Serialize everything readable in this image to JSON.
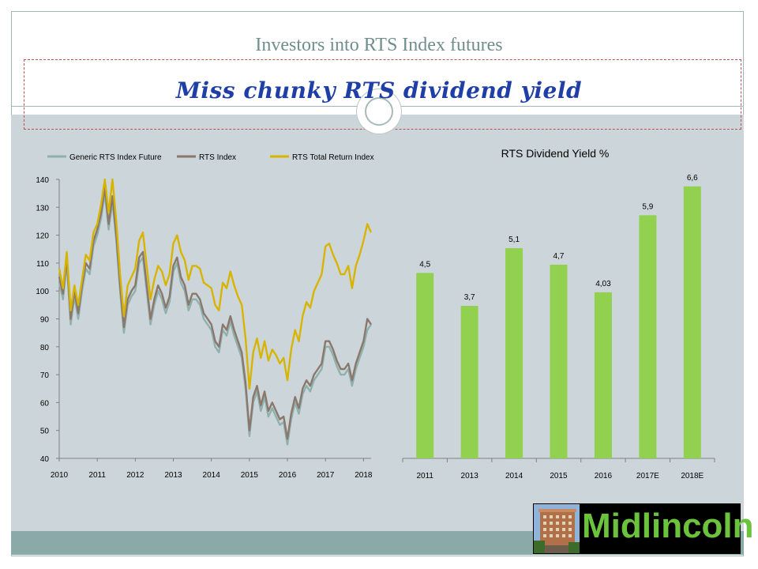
{
  "slide": {
    "title": "Investors into RTS Index futures",
    "subtitle": "Miss chunky RTS dividend yield"
  },
  "logo": {
    "text": "Midlincoln"
  },
  "colors": {
    "future": "#8fb0ad",
    "index": "#8b786c",
    "total_return": "#d8b400",
    "bar": "#92d050",
    "background": "#ccd6da",
    "footer": "#8aa9a8",
    "accent_title": "#6f8e8c",
    "subtitle": "#1f3fa6"
  },
  "chart_data": [
    {
      "type": "line",
      "title": "",
      "xlabel": "",
      "ylabel": "",
      "legend_position": "top",
      "ylim": [
        40,
        140
      ],
      "xlim": [
        2010,
        2018.2
      ],
      "xticks": [
        "2010",
        "2011",
        "2012",
        "2013",
        "2014",
        "2015",
        "2016",
        "2017",
        "2018"
      ],
      "yticks": [
        40,
        50,
        60,
        70,
        80,
        90,
        100,
        110,
        120,
        130,
        140
      ],
      "series": [
        {
          "name": "Generic RTS Index Future",
          "x": [
            2010.0,
            2010.1,
            2010.2,
            2010.3,
            2010.4,
            2010.5,
            2010.6,
            2010.7,
            2010.8,
            2010.9,
            2011.0,
            2011.1,
            2011.2,
            2011.3,
            2011.4,
            2011.5,
            2011.6,
            2011.7,
            2011.8,
            2011.9,
            2012.0,
            2012.1,
            2012.2,
            2012.3,
            2012.4,
            2012.5,
            2012.6,
            2012.7,
            2012.8,
            2012.9,
            2013.0,
            2013.1,
            2013.2,
            2013.3,
            2013.4,
            2013.5,
            2013.6,
            2013.7,
            2013.8,
            2013.9,
            2014.0,
            2014.1,
            2014.2,
            2014.3,
            2014.4,
            2014.5,
            2014.6,
            2014.7,
            2014.8,
            2014.9,
            2015.0,
            2015.1,
            2015.2,
            2015.3,
            2015.4,
            2015.5,
            2015.6,
            2015.7,
            2015.8,
            2015.9,
            2016.0,
            2016.1,
            2016.2,
            2016.3,
            2016.4,
            2016.5,
            2016.6,
            2016.7,
            2016.8,
            2016.9,
            2017.0,
            2017.1,
            2017.2,
            2017.3,
            2017.4,
            2017.5,
            2017.6,
            2017.7,
            2017.8,
            2017.9,
            2018.0,
            2018.1,
            2018.2
          ],
          "values": [
            103,
            97,
            110,
            88,
            98,
            90,
            100,
            108,
            106,
            116,
            120,
            126,
            135,
            122,
            132,
            118,
            100,
            85,
            95,
            98,
            100,
            110,
            112,
            100,
            88,
            95,
            100,
            97,
            92,
            96,
            107,
            110,
            103,
            100,
            93,
            97,
            97,
            95,
            90,
            88,
            86,
            80,
            78,
            86,
            84,
            89,
            84,
            80,
            76,
            65,
            48,
            60,
            64,
            57,
            62,
            55,
            58,
            55,
            52,
            53,
            45,
            54,
            60,
            56,
            63,
            66,
            64,
            68,
            70,
            72,
            80,
            80,
            77,
            73,
            70,
            70,
            72,
            66,
            72,
            76,
            80,
            86,
            88
          ]
        },
        {
          "name": "RTS Index",
          "x": [
            2010.0,
            2010.1,
            2010.2,
            2010.3,
            2010.4,
            2010.5,
            2010.6,
            2010.7,
            2010.8,
            2010.9,
            2011.0,
            2011.1,
            2011.2,
            2011.3,
            2011.4,
            2011.5,
            2011.6,
            2011.7,
            2011.8,
            2011.9,
            2012.0,
            2012.1,
            2012.2,
            2012.3,
            2012.4,
            2012.5,
            2012.6,
            2012.7,
            2012.8,
            2012.9,
            2013.0,
            2013.1,
            2013.2,
            2013.3,
            2013.4,
            2013.5,
            2013.6,
            2013.7,
            2013.8,
            2013.9,
            2014.0,
            2014.1,
            2014.2,
            2014.3,
            2014.4,
            2014.5,
            2014.6,
            2014.7,
            2014.8,
            2014.9,
            2015.0,
            2015.1,
            2015.2,
            2015.3,
            2015.4,
            2015.5,
            2015.6,
            2015.7,
            2015.8,
            2015.9,
            2016.0,
            2016.1,
            2016.2,
            2016.3,
            2016.4,
            2016.5,
            2016.6,
            2016.7,
            2016.8,
            2016.9,
            2017.0,
            2017.1,
            2017.2,
            2017.3,
            2017.4,
            2017.5,
            2017.6,
            2017.7,
            2017.8,
            2017.9,
            2018.0,
            2018.1,
            2018.2
          ],
          "values": [
            105,
            99,
            112,
            90,
            100,
            92,
            102,
            110,
            108,
            118,
            122,
            128,
            137,
            124,
            134,
            120,
            102,
            87,
            97,
            100,
            102,
            112,
            114,
            102,
            90,
            97,
            102,
            99,
            94,
            98,
            109,
            112,
            105,
            102,
            95,
            99,
            99,
            97,
            92,
            90,
            88,
            82,
            80,
            88,
            86,
            91,
            86,
            82,
            78,
            67,
            50,
            62,
            66,
            59,
            64,
            57,
            60,
            57,
            54,
            55,
            47,
            56,
            62,
            58,
            65,
            68,
            66,
            70,
            72,
            74,
            82,
            82,
            79,
            75,
            72,
            72,
            74,
            68,
            74,
            78,
            82,
            90,
            88
          ]
        },
        {
          "name": "RTS Total Return Index",
          "x": [
            2010.0,
            2010.1,
            2010.2,
            2010.3,
            2010.4,
            2010.5,
            2010.6,
            2010.7,
            2010.8,
            2010.9,
            2011.0,
            2011.1,
            2011.2,
            2011.3,
            2011.4,
            2011.5,
            2011.6,
            2011.7,
            2011.8,
            2011.9,
            2012.0,
            2012.1,
            2012.2,
            2012.3,
            2012.4,
            2012.5,
            2012.6,
            2012.7,
            2012.8,
            2012.9,
            2013.0,
            2013.1,
            2013.2,
            2013.3,
            2013.4,
            2013.5,
            2013.6,
            2013.7,
            2013.8,
            2013.9,
            2014.0,
            2014.1,
            2014.2,
            2014.3,
            2014.4,
            2014.5,
            2014.6,
            2014.7,
            2014.8,
            2014.9,
            2015.0,
            2015.1,
            2015.2,
            2015.3,
            2015.4,
            2015.5,
            2015.6,
            2015.7,
            2015.8,
            2015.9,
            2016.0,
            2016.1,
            2016.2,
            2016.3,
            2016.4,
            2016.5,
            2016.6,
            2016.7,
            2016.8,
            2016.9,
            2017.0,
            2017.1,
            2017.2,
            2017.3,
            2017.4,
            2017.5,
            2017.6,
            2017.7,
            2017.8,
            2017.9,
            2018.0,
            2018.1,
            2018.2
          ],
          "values": [
            108,
            101,
            114,
            93,
            102,
            95,
            104,
            113,
            111,
            121,
            124,
            131,
            140,
            128,
            140,
            125,
            106,
            91,
            102,
            105,
            108,
            118,
            121,
            109,
            97,
            104,
            109,
            107,
            102,
            106,
            117,
            120,
            114,
            111,
            104,
            109,
            109,
            108,
            103,
            102,
            101,
            95,
            93,
            103,
            101,
            107,
            102,
            98,
            95,
            83,
            65,
            78,
            83,
            76,
            82,
            75,
            79,
            77,
            74,
            76,
            68,
            79,
            86,
            82,
            91,
            96,
            94,
            100,
            103,
            106,
            116,
            117,
            113,
            110,
            106,
            106,
            109,
            101,
            109,
            113,
            118,
            124,
            121
          ]
        }
      ]
    },
    {
      "type": "bar",
      "title": "RTS Dividend Yield %",
      "xlabel": "",
      "ylabel": "",
      "categories": [
        "2011",
        "2013",
        "2014",
        "2015",
        "2016",
        "2017E",
        "2018E"
      ],
      "values": [
        4.5,
        3.7,
        5.1,
        4.7,
        4.03,
        5.9,
        6.6
      ],
      "labels": [
        "4,5",
        "3,7",
        "5,1",
        "4,7",
        "4,03",
        "5,9",
        "6,6"
      ],
      "ylim": [
        0,
        7
      ],
      "grid": false
    }
  ]
}
